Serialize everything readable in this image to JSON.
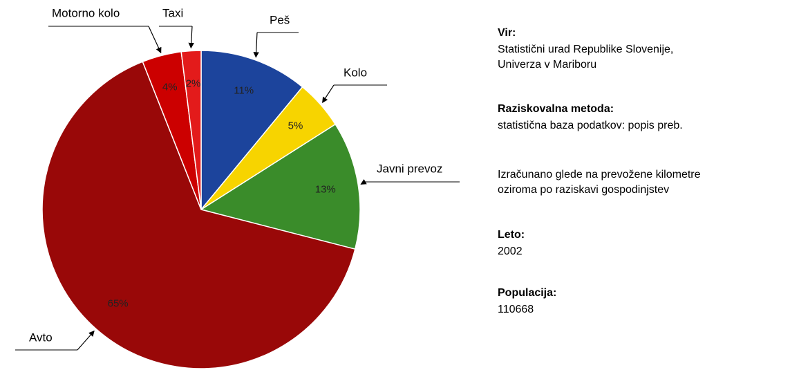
{
  "chart_data": {
    "type": "pie",
    "categories": [
      "Peš",
      "Kolo",
      "Javni prevoz",
      "Avto",
      "Motorno kolo",
      "Taxi"
    ],
    "values": [
      11,
      5,
      13,
      65,
      4,
      2
    ],
    "value_labels": [
      "11%",
      "5%",
      "13%",
      "65%",
      "4%",
      "2%"
    ],
    "colors": [
      "#1c449c",
      "#f7d400",
      "#3a8c2a",
      "#990808",
      "#cc0000",
      "#e31b1b"
    ]
  },
  "info": [
    {
      "label": "Vir:",
      "lines": [
        "Statistični urad Republike Slovenije,",
        "Univerza v Mariboru"
      ]
    },
    {
      "label": "Raziskovalna metoda:",
      "lines": [
        "statistična baza podatkov: popis preb."
      ]
    },
    {
      "lines": [
        "Izračunano glede na prevožene kilometre",
        "oziroma po raziskavi gospodinjstev"
      ]
    },
    {
      "label": "Leto:",
      "lines": [
        "2002"
      ]
    },
    {
      "label": "Populacija:",
      "lines": [
        "110668"
      ]
    }
  ]
}
